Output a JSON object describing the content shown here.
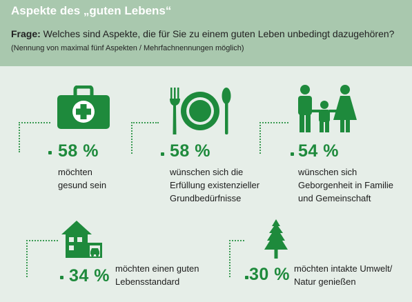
{
  "header": {
    "title": "Aspekte des „guten Lebens“",
    "question_label": "Frage:",
    "question_text": " Welches sind Aspekte, die für Sie zu einem guten Leben unbedingt dazugehören? ",
    "question_note": "(Nennung von maximal fünf Aspekten / Mehrfachnennungen möglich)"
  },
  "aspects": [
    {
      "icon": "first-aid-kit-icon",
      "percent": "58 %",
      "lines": [
        "möchten",
        "gesund sein"
      ]
    },
    {
      "icon": "plate-cutlery-icon",
      "percent": "58 %",
      "lines": [
        "wünschen sich die",
        "Erfüllung existenzieller",
        "Grundbedürfnisse"
      ]
    },
    {
      "icon": "family-icon",
      "percent": "54 %",
      "lines": [
        "wünschen sich",
        "Geborgenheit in Familie",
        "und Gemeinschaft"
      ]
    },
    {
      "icon": "house-car-icon",
      "percent": "34 %",
      "lines": [
        "möchten einen guten",
        "Lebensstandard"
      ]
    },
    {
      "icon": "fir-tree-icon",
      "percent": "30 %",
      "lines": [
        "möchten intakte Umwelt/",
        "Natur genießen"
      ]
    }
  ],
  "colors": {
    "accent": "#1e8a3c",
    "header_bg": "#a9c8ae",
    "page_bg": "#e6eee8"
  }
}
